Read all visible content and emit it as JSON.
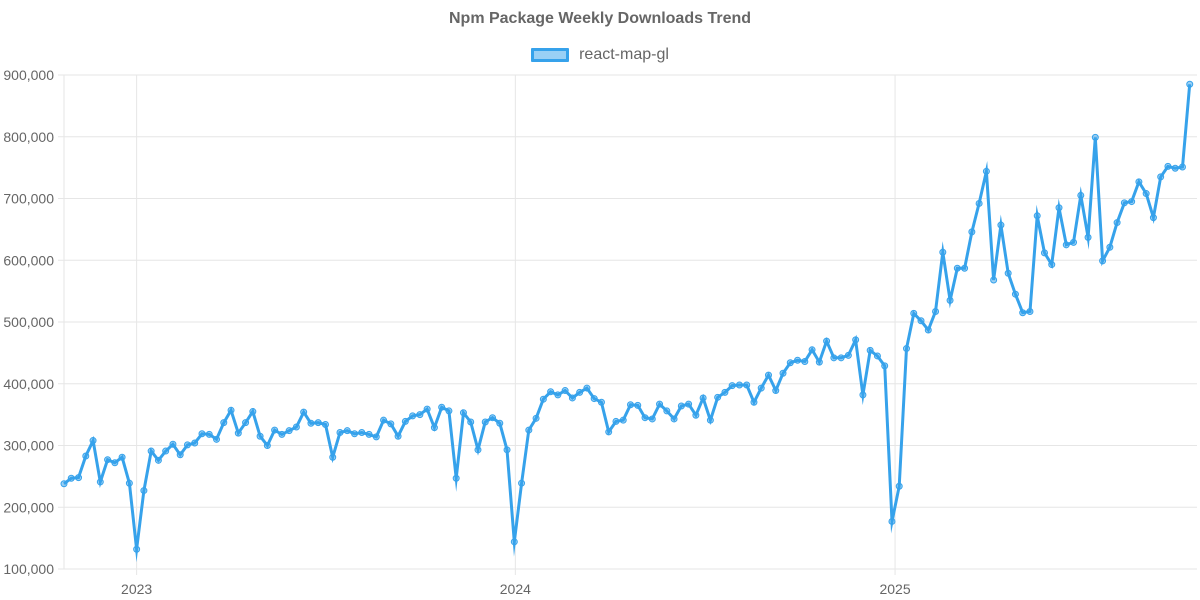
{
  "colors": {
    "line": "#36a2eb",
    "fill": "rgba(54,162,235,0.5)",
    "grid": "#e6e6e6",
    "text": "#666666"
  },
  "chart_data": {
    "type": "line",
    "title": "Npm Package Weekly Downloads Trend",
    "xlabel": "",
    "ylabel": "",
    "legend_position": "top",
    "grid": true,
    "x_range": [
      "2022-10-23",
      "2025-10-19"
    ],
    "x_ticks": [
      {
        "date": "2023-01-01",
        "label": "2023"
      },
      {
        "date": "2024-01-01",
        "label": "2024"
      },
      {
        "date": "2025-01-01",
        "label": "2025"
      }
    ],
    "ylim": [
      100000,
      900000
    ],
    "y_ticks": [
      {
        "value": 900000,
        "label": "900,000"
      },
      {
        "value": 800000,
        "label": "800,000"
      },
      {
        "value": 700000,
        "label": "700,000"
      },
      {
        "value": 600000,
        "label": "600,000"
      },
      {
        "value": 500000,
        "label": "500,000"
      },
      {
        "value": 400000,
        "label": "400,000"
      },
      {
        "value": 300000,
        "label": "300,000"
      },
      {
        "value": 200000,
        "label": "200,000"
      },
      {
        "value": 100000,
        "label": "100,000"
      }
    ],
    "series": [
      {
        "name": "react-map-gl",
        "points": [
          {
            "x": "2022-10-23",
            "y": 238000
          },
          {
            "x": "2022-10-30",
            "y": 247000
          },
          {
            "x": "2022-11-06",
            "y": 248000
          },
          {
            "x": "2022-11-13",
            "y": 283000
          },
          {
            "x": "2022-11-20",
            "y": 308000
          },
          {
            "x": "2022-11-27",
            "y": 241000
          },
          {
            "x": "2022-12-04",
            "y": 277000
          },
          {
            "x": "2022-12-11",
            "y": 272000
          },
          {
            "x": "2022-12-18",
            "y": 281000
          },
          {
            "x": "2022-12-25",
            "y": 239000
          },
          {
            "x": "2023-01-01",
            "y": 132000
          },
          {
            "x": "2023-01-08",
            "y": 227000
          },
          {
            "x": "2023-01-15",
            "y": 291000
          },
          {
            "x": "2023-01-22",
            "y": 276000
          },
          {
            "x": "2023-01-29",
            "y": 291000
          },
          {
            "x": "2023-02-05",
            "y": 302000
          },
          {
            "x": "2023-02-12",
            "y": 285000
          },
          {
            "x": "2023-02-19",
            "y": 301000
          },
          {
            "x": "2023-02-26",
            "y": 304000
          },
          {
            "x": "2023-03-05",
            "y": 319000
          },
          {
            "x": "2023-03-12",
            "y": 318000
          },
          {
            "x": "2023-03-19",
            "y": 310000
          },
          {
            "x": "2023-03-26",
            "y": 337000
          },
          {
            "x": "2023-04-02",
            "y": 357000
          },
          {
            "x": "2023-04-09",
            "y": 320000
          },
          {
            "x": "2023-04-16",
            "y": 337000
          },
          {
            "x": "2023-04-23",
            "y": 355000
          },
          {
            "x": "2023-04-30",
            "y": 315000
          },
          {
            "x": "2023-05-07",
            "y": 300000
          },
          {
            "x": "2023-05-14",
            "y": 325000
          },
          {
            "x": "2023-05-21",
            "y": 318000
          },
          {
            "x": "2023-05-28",
            "y": 324000
          },
          {
            "x": "2023-06-04",
            "y": 330000
          },
          {
            "x": "2023-06-11",
            "y": 354000
          },
          {
            "x": "2023-06-18",
            "y": 336000
          },
          {
            "x": "2023-06-25",
            "y": 337000
          },
          {
            "x": "2023-07-02",
            "y": 334000
          },
          {
            "x": "2023-07-09",
            "y": 281000
          },
          {
            "x": "2023-07-16",
            "y": 321000
          },
          {
            "x": "2023-07-23",
            "y": 324000
          },
          {
            "x": "2023-07-30",
            "y": 319000
          },
          {
            "x": "2023-08-06",
            "y": 321000
          },
          {
            "x": "2023-08-13",
            "y": 318000
          },
          {
            "x": "2023-08-20",
            "y": 314000
          },
          {
            "x": "2023-08-27",
            "y": 341000
          },
          {
            "x": "2023-09-03",
            "y": 335000
          },
          {
            "x": "2023-09-10",
            "y": 315000
          },
          {
            "x": "2023-09-17",
            "y": 339000
          },
          {
            "x": "2023-09-24",
            "y": 348000
          },
          {
            "x": "2023-10-01",
            "y": 350000
          },
          {
            "x": "2023-10-08",
            "y": 359000
          },
          {
            "x": "2023-10-15",
            "y": 329000
          },
          {
            "x": "2023-10-22",
            "y": 362000
          },
          {
            "x": "2023-10-29",
            "y": 356000
          },
          {
            "x": "2023-11-05",
            "y": 247000
          },
          {
            "x": "2023-11-12",
            "y": 353000
          },
          {
            "x": "2023-11-19",
            "y": 338000
          },
          {
            "x": "2023-11-26",
            "y": 293000
          },
          {
            "x": "2023-12-03",
            "y": 338000
          },
          {
            "x": "2023-12-10",
            "y": 345000
          },
          {
            "x": "2023-12-17",
            "y": 336000
          },
          {
            "x": "2023-12-24",
            "y": 293000
          },
          {
            "x": "2023-12-31",
            "y": 144000
          },
          {
            "x": "2024-01-07",
            "y": 239000
          },
          {
            "x": "2024-01-14",
            "y": 325000
          },
          {
            "x": "2024-01-21",
            "y": 344000
          },
          {
            "x": "2024-01-28",
            "y": 375000
          },
          {
            "x": "2024-02-04",
            "y": 387000
          },
          {
            "x": "2024-02-11",
            "y": 382000
          },
          {
            "x": "2024-02-18",
            "y": 389000
          },
          {
            "x": "2024-02-25",
            "y": 377000
          },
          {
            "x": "2024-03-03",
            "y": 386000
          },
          {
            "x": "2024-03-10",
            "y": 393000
          },
          {
            "x": "2024-03-17",
            "y": 376000
          },
          {
            "x": "2024-03-24",
            "y": 370000
          },
          {
            "x": "2024-03-31",
            "y": 322000
          },
          {
            "x": "2024-04-07",
            "y": 339000
          },
          {
            "x": "2024-04-14",
            "y": 341000
          },
          {
            "x": "2024-04-21",
            "y": 366000
          },
          {
            "x": "2024-04-28",
            "y": 365000
          },
          {
            "x": "2024-05-05",
            "y": 345000
          },
          {
            "x": "2024-05-12",
            "y": 343000
          },
          {
            "x": "2024-05-19",
            "y": 367000
          },
          {
            "x": "2024-05-26",
            "y": 356000
          },
          {
            "x": "2024-06-02",
            "y": 343000
          },
          {
            "x": "2024-06-09",
            "y": 364000
          },
          {
            "x": "2024-06-16",
            "y": 367000
          },
          {
            "x": "2024-06-23",
            "y": 349000
          },
          {
            "x": "2024-06-30",
            "y": 377000
          },
          {
            "x": "2024-07-07",
            "y": 341000
          },
          {
            "x": "2024-07-14",
            "y": 378000
          },
          {
            "x": "2024-07-21",
            "y": 386000
          },
          {
            "x": "2024-07-28",
            "y": 397000
          },
          {
            "x": "2024-08-04",
            "y": 398000
          },
          {
            "x": "2024-08-11",
            "y": 398000
          },
          {
            "x": "2024-08-18",
            "y": 370000
          },
          {
            "x": "2024-08-25",
            "y": 393000
          },
          {
            "x": "2024-09-01",
            "y": 414000
          },
          {
            "x": "2024-09-08",
            "y": 389000
          },
          {
            "x": "2024-09-15",
            "y": 417000
          },
          {
            "x": "2024-09-22",
            "y": 434000
          },
          {
            "x": "2024-09-29",
            "y": 438000
          },
          {
            "x": "2024-10-06",
            "y": 436000
          },
          {
            "x": "2024-10-13",
            "y": 455000
          },
          {
            "x": "2024-10-20",
            "y": 435000
          },
          {
            "x": "2024-10-27",
            "y": 469000
          },
          {
            "x": "2024-11-03",
            "y": 442000
          },
          {
            "x": "2024-11-10",
            "y": 442000
          },
          {
            "x": "2024-11-17",
            "y": 446000
          },
          {
            "x": "2024-11-24",
            "y": 471000
          },
          {
            "x": "2024-12-01",
            "y": 382000
          },
          {
            "x": "2024-12-08",
            "y": 454000
          },
          {
            "x": "2024-12-15",
            "y": 445000
          },
          {
            "x": "2024-12-22",
            "y": 429000
          },
          {
            "x": "2024-12-29",
            "y": 177000
          },
          {
            "x": "2025-01-05",
            "y": 234000
          },
          {
            "x": "2025-01-12",
            "y": 457000
          },
          {
            "x": "2025-01-19",
            "y": 514000
          },
          {
            "x": "2025-01-26",
            "y": 502000
          },
          {
            "x": "2025-02-02",
            "y": 487000
          },
          {
            "x": "2025-02-09",
            "y": 517000
          },
          {
            "x": "2025-02-16",
            "y": 613000
          },
          {
            "x": "2025-02-23",
            "y": 535000
          },
          {
            "x": "2025-03-02",
            "y": 587000
          },
          {
            "x": "2025-03-09",
            "y": 587000
          },
          {
            "x": "2025-03-16",
            "y": 646000
          },
          {
            "x": "2025-03-23",
            "y": 692000
          },
          {
            "x": "2025-03-30",
            "y": 744000
          },
          {
            "x": "2025-04-06",
            "y": 568000
          },
          {
            "x": "2025-04-13",
            "y": 657000
          },
          {
            "x": "2025-04-20",
            "y": 579000
          },
          {
            "x": "2025-04-27",
            "y": 545000
          },
          {
            "x": "2025-05-04",
            "y": 515000
          },
          {
            "x": "2025-05-11",
            "y": 517000
          },
          {
            "x": "2025-05-18",
            "y": 672000
          },
          {
            "x": "2025-05-25",
            "y": 612000
          },
          {
            "x": "2025-06-01",
            "y": 593000
          },
          {
            "x": "2025-06-08",
            "y": 685000
          },
          {
            "x": "2025-06-15",
            "y": 625000
          },
          {
            "x": "2025-06-22",
            "y": 629000
          },
          {
            "x": "2025-06-29",
            "y": 705000
          },
          {
            "x": "2025-07-06",
            "y": 637000
          },
          {
            "x": "2025-07-13",
            "y": 799000
          },
          {
            "x": "2025-07-20",
            "y": 599000
          },
          {
            "x": "2025-07-27",
            "y": 621000
          },
          {
            "x": "2025-08-03",
            "y": 661000
          },
          {
            "x": "2025-08-10",
            "y": 693000
          },
          {
            "x": "2025-08-17",
            "y": 695000
          },
          {
            "x": "2025-08-24",
            "y": 727000
          },
          {
            "x": "2025-08-31",
            "y": 708000
          },
          {
            "x": "2025-09-07",
            "y": 669000
          },
          {
            "x": "2025-09-14",
            "y": 735000
          },
          {
            "x": "2025-09-21",
            "y": 752000
          },
          {
            "x": "2025-09-28",
            "y": 749000
          },
          {
            "x": "2025-10-05",
            "y": 751000
          },
          {
            "x": "2025-10-12",
            "y": 885000
          }
        ]
      }
    ]
  }
}
